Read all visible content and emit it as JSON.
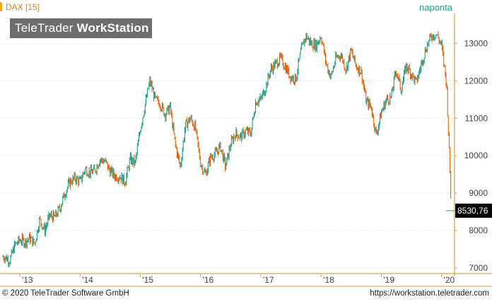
{
  "header": {
    "instrument": "DAX [15]",
    "range_label": "naponta",
    "watermark_light": "TeleTrader ",
    "watermark_bold": "WorkStation"
  },
  "footer": {
    "copyright": "© 2020 TeleTrader Software GmbH",
    "url": "https://workstation.teletrader.com"
  },
  "colors": {
    "up": "#1aa088",
    "down": "#e8620c",
    "axis": "#e2a23a",
    "grid": "#d9d9d9",
    "price_box": "#000000",
    "text": "#444444"
  },
  "chart_data": {
    "type": "candlestick",
    "title": "DAX [15]",
    "interval": "naponta",
    "x_ticks": [
      "'13",
      "'14",
      "'15",
      "'16",
      "'17",
      "'18",
      "'19",
      "'20"
    ],
    "y_ticks": [
      7000,
      8000,
      9000,
      10000,
      11000,
      12000,
      13000
    ],
    "ylim": [
      6850,
      13800
    ],
    "last_value": 8530.76,
    "last_value_label": "8530,76",
    "grid": "horizontal dotted",
    "x": [
      "2012-10-01",
      "2012-11-01",
      "2012-12-01",
      "2013-01-01",
      "2013-02-01",
      "2013-03-01",
      "2013-04-01",
      "2013-05-01",
      "2013-06-01",
      "2013-07-01",
      "2013-08-01",
      "2013-09-01",
      "2013-10-01",
      "2013-11-01",
      "2013-12-01",
      "2014-01-01",
      "2014-02-01",
      "2014-03-01",
      "2014-04-01",
      "2014-05-01",
      "2014-06-01",
      "2014-07-01",
      "2014-08-01",
      "2014-09-01",
      "2014-10-01",
      "2014-11-01",
      "2014-12-01",
      "2015-01-01",
      "2015-02-01",
      "2015-03-01",
      "2015-04-01",
      "2015-05-01",
      "2015-06-01",
      "2015-07-01",
      "2015-08-01",
      "2015-09-01",
      "2015-10-01",
      "2015-11-01",
      "2015-12-01",
      "2016-01-01",
      "2016-02-01",
      "2016-03-01",
      "2016-04-01",
      "2016-05-01",
      "2016-06-01",
      "2016-07-01",
      "2016-08-01",
      "2016-09-01",
      "2016-10-01",
      "2016-11-01",
      "2016-12-01",
      "2017-01-01",
      "2017-02-01",
      "2017-03-01",
      "2017-04-01",
      "2017-05-01",
      "2017-06-01",
      "2017-07-01",
      "2017-08-01",
      "2017-09-01",
      "2017-10-01",
      "2017-11-01",
      "2017-12-01",
      "2018-01-01",
      "2018-02-01",
      "2018-03-01",
      "2018-04-01",
      "2018-05-01",
      "2018-06-01",
      "2018-07-01",
      "2018-08-01",
      "2018-09-01",
      "2018-10-01",
      "2018-11-01",
      "2018-12-01",
      "2019-01-01",
      "2019-02-01",
      "2019-03-01",
      "2019-04-01",
      "2019-05-01",
      "2019-06-01",
      "2019-07-01",
      "2019-08-01",
      "2019-09-01",
      "2019-10-01",
      "2019-11-01",
      "2019-12-01",
      "2020-01-01",
      "2020-02-01",
      "2020-03-01"
    ],
    "values": [
      7300,
      7200,
      7600,
      7750,
      7700,
      7800,
      7650,
      8300,
      8000,
      8400,
      8350,
      8600,
      9000,
      9300,
      9400,
      9300,
      9650,
      9550,
      9600,
      9900,
      9850,
      9600,
      9450,
      9450,
      9300,
      9900,
      9800,
      10700,
      11400,
      12000,
      11500,
      11400,
      11100,
      11300,
      10300,
      9700,
      10800,
      11000,
      10750,
      9800,
      9500,
      9950,
      10050,
      10250,
      9700,
      10300,
      10600,
      10500,
      10650,
      10600,
      11450,
      11500,
      11850,
      12300,
      12450,
      12600,
      12350,
      12100,
      12050,
      12800,
      13200,
      13000,
      12950,
      13200,
      12450,
      12100,
      12600,
      12700,
      12300,
      12800,
      12400,
      12250,
      11450,
      11300,
      10550,
      11150,
      11500,
      11550,
      12300,
      11750,
      12400,
      12200,
      11950,
      12450,
      12900,
      13200,
      13250,
      12950,
      11900,
      8530.76
    ]
  }
}
